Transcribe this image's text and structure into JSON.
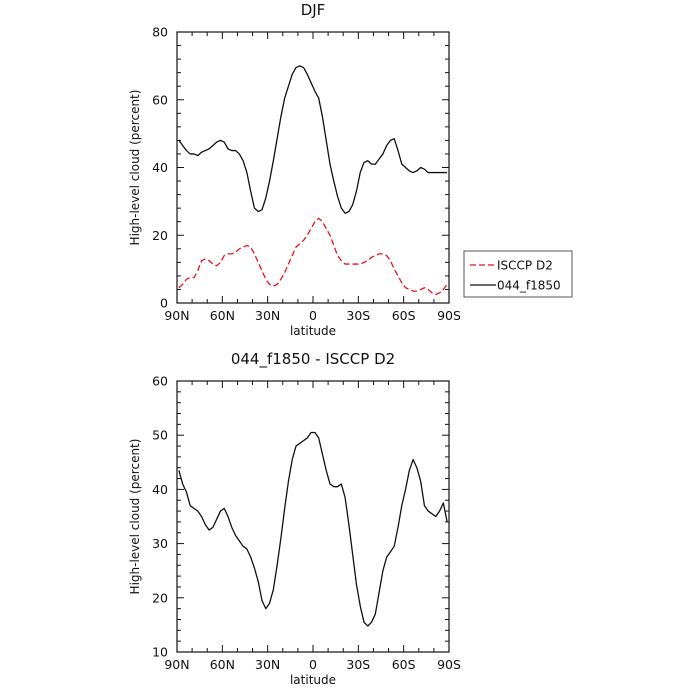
{
  "chart_data": [
    {
      "type": "line",
      "title": "DJF",
      "xlabel": "latitude",
      "ylabel": "High-level cloud (percent)",
      "xlim": [
        -90,
        90
      ],
      "ylim": [
        0,
        80
      ],
      "xticks": [
        -90,
        -60,
        -30,
        0,
        30,
        60,
        90
      ],
      "xtick_labels": [
        "90N",
        "60N",
        "30N",
        "0",
        "30S",
        "60S",
        "90S"
      ],
      "yticks": [
        0,
        20,
        40,
        60,
        80
      ],
      "yticks_labels": [
        "0",
        "20",
        "40",
        "60",
        "80"
      ],
      "legend_position": "right",
      "series": [
        {
          "name": "ISCCP D2",
          "color": "#e8141b",
          "dash": "dashed",
          "x": [
            -88.75,
            -86.25,
            -83.75,
            -81.25,
            -78.75,
            -76.25,
            -73.75,
            -71.25,
            -68.75,
            -66.25,
            -63.75,
            -61.25,
            -58.75,
            -56.25,
            -53.75,
            -51.25,
            -48.75,
            -46.25,
            -43.75,
            -41.25,
            -38.75,
            -36.25,
            -33.75,
            -31.25,
            -28.75,
            -26.25,
            -23.75,
            -21.25,
            -18.75,
            -16.25,
            -13.75,
            -11.25,
            -8.75,
            -6.25,
            -3.75,
            -1.25,
            1.25,
            3.75,
            6.25,
            8.75,
            11.25,
            13.75,
            16.25,
            18.75,
            21.25,
            23.75,
            26.25,
            28.75,
            31.25,
            33.75,
            36.25,
            38.75,
            41.25,
            43.75,
            46.25,
            48.75,
            51.25,
            53.75,
            56.25,
            58.75,
            61.25,
            63.75,
            66.25,
            68.75,
            71.25,
            73.75,
            76.25,
            78.75,
            81.25,
            83.75,
            86.25,
            88.75
          ],
          "y": [
            4.5,
            5.5,
            7.0,
            7.5,
            7.5,
            9.5,
            12.5,
            13.0,
            12.5,
            11.5,
            11.0,
            12.0,
            14.0,
            14.5,
            14.5,
            15.0,
            16.0,
            16.5,
            17.0,
            16.5,
            14.5,
            12.0,
            9.5,
            7.0,
            5.5,
            5.0,
            5.5,
            7.0,
            9.0,
            11.5,
            14.0,
            16.5,
            17.5,
            18.5,
            20.0,
            22.0,
            24.0,
            25.0,
            24.0,
            22.0,
            20.0,
            17.0,
            14.0,
            12.5,
            11.5,
            11.5,
            11.5,
            11.5,
            11.5,
            12.0,
            12.5,
            13.5,
            14.0,
            14.5,
            14.5,
            14.0,
            12.5,
            10.0,
            8.0,
            6.0,
            4.5,
            4.0,
            3.5,
            3.5,
            4.0,
            4.5,
            4.0,
            3.0,
            2.5,
            3.0,
            4.0,
            5.5
          ]
        },
        {
          "name": "044_f1850",
          "color": "#111111",
          "dash": "solid",
          "x": [
            -88.75,
            -86.25,
            -83.75,
            -81.25,
            -78.75,
            -76.25,
            -73.75,
            -71.25,
            -68.75,
            -66.25,
            -63.75,
            -61.25,
            -58.75,
            -56.25,
            -53.75,
            -51.25,
            -48.75,
            -46.25,
            -43.75,
            -41.25,
            -38.75,
            -36.25,
            -33.75,
            -31.25,
            -28.75,
            -26.25,
            -23.75,
            -21.25,
            -18.75,
            -16.25,
            -13.75,
            -11.25,
            -8.75,
            -6.25,
            -3.75,
            -1.25,
            1.25,
            3.75,
            6.25,
            8.75,
            11.25,
            13.75,
            16.25,
            18.75,
            21.25,
            23.75,
            26.25,
            28.75,
            31.25,
            33.75,
            36.25,
            38.75,
            41.25,
            43.75,
            46.25,
            48.75,
            51.25,
            53.75,
            56.25,
            58.75,
            61.25,
            63.75,
            66.25,
            68.75,
            71.25,
            73.75,
            76.25,
            78.75,
            81.25,
            83.75,
            86.25,
            88.75
          ],
          "y": [
            48.0,
            46.5,
            45.0,
            44.0,
            44.0,
            43.5,
            44.5,
            45.0,
            45.5,
            46.5,
            47.5,
            48.0,
            47.5,
            45.5,
            45.0,
            45.0,
            44.0,
            42.0,
            38.5,
            33.0,
            28.0,
            27.0,
            27.5,
            31.0,
            36.0,
            42.0,
            48.5,
            55.0,
            60.5,
            64.0,
            67.5,
            69.5,
            70.0,
            69.5,
            67.5,
            65.0,
            62.5,
            60.5,
            55.0,
            48.0,
            41.0,
            36.0,
            31.5,
            28.0,
            26.5,
            27.0,
            29.0,
            33.0,
            38.5,
            41.5,
            42.0,
            41.0,
            41.0,
            42.5,
            44.0,
            46.5,
            48.0,
            48.5,
            45.0,
            41.0,
            40.0,
            39.0,
            38.5,
            39.0,
            40.0,
            39.5,
            38.5,
            38.5,
            38.5,
            38.5,
            38.5,
            38.5
          ]
        }
      ]
    },
    {
      "type": "line",
      "title": "044_f1850 - ISCCP D2",
      "xlabel": "latitude",
      "ylabel": "High-level cloud (percent)",
      "xlim": [
        -90,
        90
      ],
      "ylim": [
        10,
        60
      ],
      "xticks": [
        -90,
        -60,
        -30,
        0,
        30,
        60,
        90
      ],
      "xtick_labels": [
        "90N",
        "60N",
        "30N",
        "0",
        "30S",
        "60S",
        "90S"
      ],
      "yticks": [
        10,
        20,
        30,
        40,
        50,
        60
      ],
      "yticks_labels": [
        "10",
        "20",
        "30",
        "40",
        "50",
        "60"
      ],
      "series": [
        {
          "color": "#111111",
          "dash": "solid",
          "x": [
            -88.75,
            -86.25,
            -83.75,
            -81.25,
            -78.75,
            -76.25,
            -73.75,
            -71.25,
            -68.75,
            -66.25,
            -63.75,
            -61.25,
            -58.75,
            -56.25,
            -53.75,
            -51.25,
            -48.75,
            -46.25,
            -43.75,
            -41.25,
            -38.75,
            -36.25,
            -33.75,
            -31.25,
            -28.75,
            -26.25,
            -23.75,
            -21.25,
            -18.75,
            -16.25,
            -13.75,
            -11.25,
            -8.75,
            -6.25,
            -3.75,
            -1.25,
            1.25,
            3.75,
            6.25,
            8.75,
            11.25,
            13.75,
            16.25,
            18.75,
            21.25,
            23.75,
            26.25,
            28.75,
            31.25,
            33.75,
            36.25,
            38.75,
            41.25,
            43.75,
            46.25,
            48.75,
            51.25,
            53.75,
            56.25,
            58.75,
            61.25,
            63.75,
            66.25,
            68.75,
            71.25,
            73.75,
            76.25,
            78.75,
            81.25,
            83.75,
            86.25,
            88.75
          ],
          "y": [
            43.5,
            41.0,
            39.5,
            37.0,
            36.5,
            36.0,
            35.0,
            33.5,
            32.5,
            33.0,
            34.5,
            36.0,
            36.5,
            35.0,
            33.0,
            31.5,
            30.5,
            29.5,
            29.0,
            27.5,
            25.5,
            23.0,
            19.5,
            18.0,
            19.0,
            21.5,
            26.0,
            31.0,
            36.5,
            41.5,
            45.5,
            48.0,
            48.5,
            49.0,
            49.5,
            50.5,
            50.5,
            49.5,
            46.5,
            43.5,
            41.0,
            40.5,
            40.5,
            41.0,
            38.5,
            33.5,
            28.0,
            22.5,
            18.5,
            15.5,
            14.8,
            15.5,
            17.0,
            21.0,
            25.0,
            27.5,
            28.5,
            29.5,
            33.0,
            37.0,
            40.0,
            43.5,
            45.5,
            44.0,
            41.5,
            37.0,
            36.0,
            35.5,
            35.0,
            36.0,
            37.5,
            34.0
          ]
        }
      ]
    }
  ]
}
